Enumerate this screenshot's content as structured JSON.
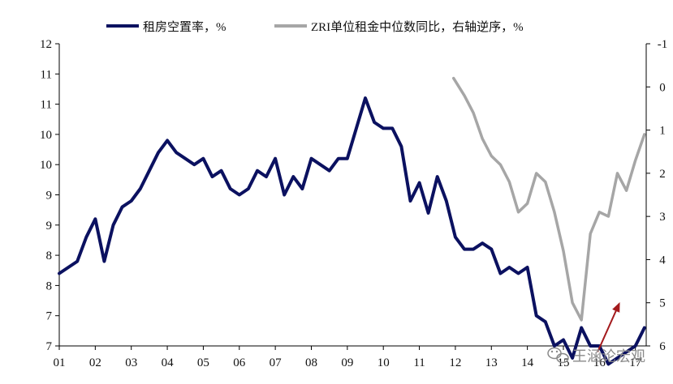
{
  "chart_data": {
    "type": "line",
    "legend_position": "top",
    "grid": false,
    "x_ticks": [
      "01",
      "02",
      "03",
      "04",
      "05",
      "06",
      "07",
      "08",
      "09",
      "10",
      "11",
      "12",
      "13",
      "14",
      "15",
      "16",
      "17"
    ],
    "x_range": [
      2001,
      2017.3
    ],
    "y_left_ticks": [
      "12",
      "11",
      "11",
      "10",
      "10",
      "9",
      "9",
      "8",
      "8",
      "7",
      "7"
    ],
    "y_left_range": [
      7.0,
      12.0
    ],
    "y_right_ticks": [
      "-1",
      "0",
      "1",
      "2",
      "3",
      "4",
      "5",
      "6"
    ],
    "y_right_range": [
      -1,
      6
    ],
    "y_right_reversed": true,
    "series": [
      {
        "name": "租房空置率，%",
        "axis": "left",
        "color": "#0b1160",
        "points": [
          [
            2001.0,
            8.2
          ],
          [
            2001.5,
            8.4
          ],
          [
            2001.75,
            8.8
          ],
          [
            2002.0,
            9.1
          ],
          [
            2002.25,
            8.4
          ],
          [
            2002.5,
            9.0
          ],
          [
            2002.75,
            9.3
          ],
          [
            2003.0,
            9.4
          ],
          [
            2003.25,
            9.6
          ],
          [
            2003.5,
            9.9
          ],
          [
            2003.75,
            10.2
          ],
          [
            2004.0,
            10.4
          ],
          [
            2004.25,
            10.2
          ],
          [
            2004.5,
            10.1
          ],
          [
            2004.75,
            10.0
          ],
          [
            2005.0,
            10.1
          ],
          [
            2005.25,
            9.8
          ],
          [
            2005.5,
            9.9
          ],
          [
            2005.75,
            9.6
          ],
          [
            2006.0,
            9.5
          ],
          [
            2006.25,
            9.6
          ],
          [
            2006.5,
            9.9
          ],
          [
            2006.75,
            9.8
          ],
          [
            2007.0,
            10.1
          ],
          [
            2007.25,
            9.5
          ],
          [
            2007.5,
            9.8
          ],
          [
            2007.75,
            9.6
          ],
          [
            2008.0,
            10.1
          ],
          [
            2008.25,
            10.0
          ],
          [
            2008.5,
            9.9
          ],
          [
            2008.75,
            10.1
          ],
          [
            2009.0,
            10.1
          ],
          [
            2009.25,
            10.6
          ],
          [
            2009.5,
            11.1
          ],
          [
            2009.75,
            10.7
          ],
          [
            2010.0,
            10.6
          ],
          [
            2010.25,
            10.6
          ],
          [
            2010.5,
            10.3
          ],
          [
            2010.75,
            9.4
          ],
          [
            2011.0,
            9.7
          ],
          [
            2011.25,
            9.2
          ],
          [
            2011.5,
            9.8
          ],
          [
            2011.75,
            9.4
          ],
          [
            2012.0,
            8.8
          ],
          [
            2012.25,
            8.6
          ],
          [
            2012.5,
            8.6
          ],
          [
            2012.75,
            8.7
          ],
          [
            2013.0,
            8.6
          ],
          [
            2013.25,
            8.2
          ],
          [
            2013.5,
            8.3
          ],
          [
            2013.75,
            8.2
          ],
          [
            2014.0,
            8.3
          ],
          [
            2014.25,
            7.5
          ],
          [
            2014.5,
            7.4
          ],
          [
            2014.75,
            7.0
          ],
          [
            2015.0,
            7.1
          ],
          [
            2015.25,
            6.8
          ],
          [
            2015.5,
            7.3
          ],
          [
            2015.75,
            7.0
          ],
          [
            2016.0,
            7.0
          ],
          [
            2016.25,
            6.7
          ],
          [
            2016.5,
            6.8
          ],
          [
            2016.75,
            6.9
          ],
          [
            2017.0,
            7.0
          ],
          [
            2017.25,
            7.3
          ]
        ]
      },
      {
        "name": "ZRI单位租金中位数同比，右轴逆序，%",
        "axis": "right",
        "color": "#a6a6a6",
        "points": [
          [
            2011.95,
            -0.2
          ],
          [
            2012.25,
            0.2
          ],
          [
            2012.5,
            0.6
          ],
          [
            2012.75,
            1.2
          ],
          [
            2013.0,
            1.6
          ],
          [
            2013.25,
            1.8
          ],
          [
            2013.5,
            2.2
          ],
          [
            2013.75,
            2.9
          ],
          [
            2014.0,
            2.7
          ],
          [
            2014.25,
            2.0
          ],
          [
            2014.5,
            2.2
          ],
          [
            2014.75,
            2.9
          ],
          [
            2015.0,
            3.8
          ],
          [
            2015.25,
            5.0
          ],
          [
            2015.5,
            5.4
          ],
          [
            2015.75,
            3.4
          ],
          [
            2016.0,
            2.9
          ],
          [
            2016.25,
            3.0
          ],
          [
            2016.5,
            2.0
          ],
          [
            2016.75,
            2.4
          ],
          [
            2017.0,
            1.7
          ],
          [
            2017.25,
            1.1
          ]
        ]
      }
    ],
    "annotations": [
      {
        "type": "arrow",
        "color": "#a31a1d",
        "from": [
          2015.95,
          6.9
        ],
        "to": [
          2016.55,
          7.7
        ]
      }
    ]
  },
  "watermark": {
    "text": "王涵论宏观",
    "icon": "wechat-icon"
  }
}
